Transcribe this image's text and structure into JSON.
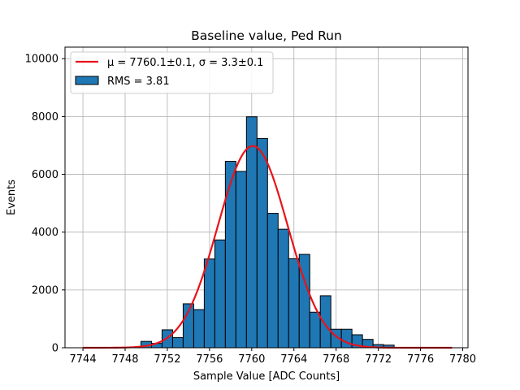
{
  "chart_data": {
    "type": "bar",
    "title": "Baseline value, Ped Run",
    "xlabel": "Sample Value [ADC Counts]",
    "ylabel": "Events",
    "xlim": [
      7742.3,
      7780.5
    ],
    "ylim": [
      0,
      10400
    ],
    "xticks": [
      7744,
      7748,
      7752,
      7756,
      7760,
      7764,
      7768,
      7772,
      7776,
      7780
    ],
    "yticks": [
      0,
      2000,
      4000,
      6000,
      8000,
      10000
    ],
    "grid": true,
    "legend_position": "top-left",
    "bin_width": 1,
    "bins": [
      {
        "x": 7748,
        "count": 10
      },
      {
        "x": 7749,
        "count": 10
      },
      {
        "x": 7750,
        "count": 220
      },
      {
        "x": 7751,
        "count": 150
      },
      {
        "x": 7752,
        "count": 620
      },
      {
        "x": 7753,
        "count": 350
      },
      {
        "x": 7754,
        "count": 1520
      },
      {
        "x": 7755,
        "count": 1320
      },
      {
        "x": 7756,
        "count": 3070
      },
      {
        "x": 7757,
        "count": 3730
      },
      {
        "x": 7758,
        "count": 6450
      },
      {
        "x": 7759,
        "count": 6100
      },
      {
        "x": 7760,
        "count": 7990
      },
      {
        "x": 7761,
        "count": 7240
      },
      {
        "x": 7762,
        "count": 4650
      },
      {
        "x": 7763,
        "count": 4100
      },
      {
        "x": 7764,
        "count": 3080
      },
      {
        "x": 7765,
        "count": 3230
      },
      {
        "x": 7766,
        "count": 1230
      },
      {
        "x": 7767,
        "count": 1800
      },
      {
        "x": 7768,
        "count": 640
      },
      {
        "x": 7769,
        "count": 640
      },
      {
        "x": 7770,
        "count": 450
      },
      {
        "x": 7771,
        "count": 290
      },
      {
        "x": 7772,
        "count": 110
      },
      {
        "x": 7773,
        "count": 90
      }
    ],
    "fit": {
      "mu": 7760.1,
      "sigma": 3.3,
      "amplitude": 6980,
      "x_range": [
        7744,
        7779
      ]
    },
    "series": [
      {
        "name": "μ = 7760.1±0.1, σ = 3.3±0.1",
        "kind": "line",
        "color": "#e8131a"
      },
      {
        "name": "RMS = 3.81",
        "kind": "histogram",
        "color": "#1f77b4"
      }
    ]
  }
}
